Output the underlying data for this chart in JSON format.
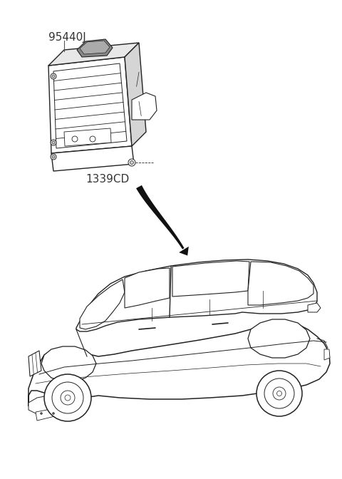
{
  "bg_color": "#ffffff",
  "label_95440J": "95440J",
  "label_1339CD": "1339CD",
  "label_font_size": 11,
  "line_color": "#222222",
  "arrow_color": "#111111",
  "fig_width": 4.8,
  "fig_height": 6.72,
  "dpi": 100
}
